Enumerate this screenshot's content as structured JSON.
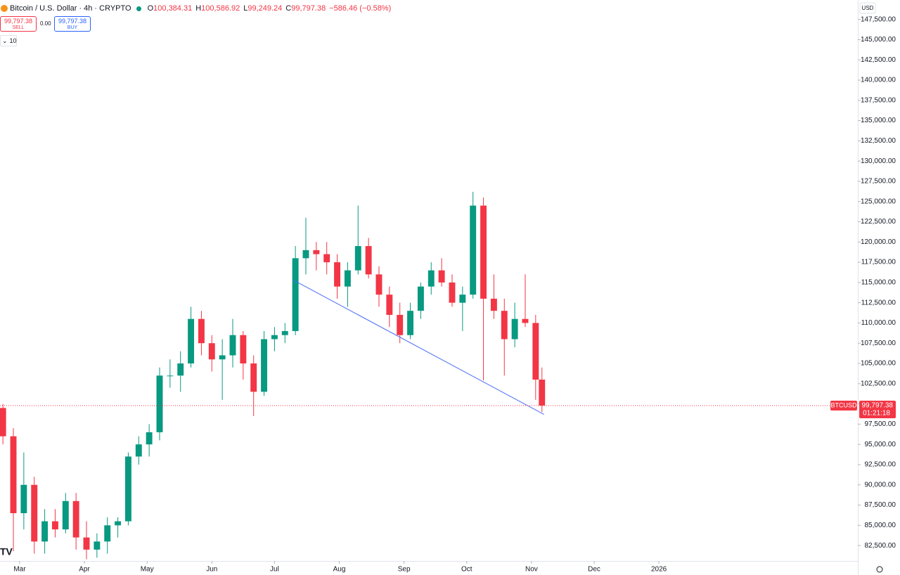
{
  "header": {
    "symbol": "Bitcoin / U.S. Dollar · 4h · CRYPTO",
    "ohlc": [
      {
        "key": "O",
        "value": "100,384.31"
      },
      {
        "key": "H",
        "value": "100,586.92"
      },
      {
        "key": "L",
        "value": "99,249.24"
      },
      {
        "key": "C",
        "value": "99,797.38"
      }
    ],
    "change": "−586.46 (−0.58%)",
    "sell": {
      "price": "99,797.38",
      "label": "SELL"
    },
    "spread": "0.00",
    "buy": {
      "price": "99,797.38",
      "label": "BUY"
    },
    "quantity": "10"
  },
  "chart_data": {
    "type": "candlestick",
    "currency": "USD",
    "symbol_tag": "BTCUSD",
    "last_price": {
      "value": 99797.38,
      "label": "99,797.38"
    },
    "countdown": "01:21:18",
    "up_color": "#089981",
    "down_color": "#f23645",
    "x": [
      -8,
      -3,
      2,
      7,
      12,
      17,
      22,
      27,
      32,
      37,
      42,
      47,
      52,
      57,
      62,
      67,
      72,
      77,
      82,
      87,
      92,
      97,
      102,
      107,
      112,
      117,
      122,
      127,
      132,
      137,
      142,
      147,
      152,
      157,
      162,
      167,
      172,
      177,
      182,
      187,
      192,
      197,
      202,
      207,
      212,
      217,
      222,
      227,
      232,
      237,
      242,
      247,
      250
    ],
    "open": [
      99500,
      96000,
      86500,
      90000,
      83000,
      85500,
      84500,
      88000,
      83500,
      82000,
      83000,
      85000,
      85500,
      93500,
      95000,
      96500,
      103500,
      103500,
      105000,
      110500,
      107500,
      105500,
      106000,
      108500,
      105000,
      101500,
      108000,
      108500,
      109000,
      118000,
      119000,
      118500,
      117500,
      114500,
      116500,
      119500,
      116000,
      113500,
      111000,
      108500,
      111500,
      114500,
      116500,
      115000,
      112500,
      113500,
      124500,
      113000,
      111500,
      108000,
      110500,
      110000,
      103000
    ],
    "high": [
      100000,
      97000,
      94000,
      91000,
      87000,
      87000,
      89000,
      89000,
      85500,
      84000,
      86000,
      86000,
      94000,
      96000,
      97500,
      104500,
      105500,
      106500,
      112000,
      111500,
      108500,
      108000,
      110500,
      109000,
      106000,
      109000,
      109500,
      110000,
      119500,
      123000,
      120000,
      120000,
      118500,
      117500,
      124500,
      120500,
      117000,
      114500,
      112500,
      112500,
      115000,
      117500,
      118000,
      116000,
      114500,
      126200,
      125500,
      116000,
      113000,
      112500,
      116000,
      111000,
      104500
    ],
    "low": [
      95000,
      81800,
      84500,
      81500,
      81500,
      83500,
      84000,
      82000,
      80800,
      81000,
      81500,
      83500,
      85000,
      92500,
      93500,
      95500,
      102000,
      101500,
      104500,
      106000,
      104000,
      100500,
      104500,
      103000,
      98500,
      101000,
      106500,
      107500,
      108500,
      116000,
      116500,
      116000,
      113000,
      112000,
      116000,
      115500,
      112000,
      109500,
      107500,
      108000,
      110500,
      113500,
      114500,
      112000,
      109000,
      113000,
      102900,
      110500,
      103500,
      107000,
      109500,
      100500,
      99000
    ],
    "close": [
      96000,
      86500,
      90000,
      83000,
      85500,
      84500,
      88000,
      83500,
      82000,
      83000,
      85000,
      85500,
      93500,
      95000,
      96500,
      103500,
      103500,
      105000,
      110500,
      107500,
      105500,
      106000,
      108500,
      105000,
      101500,
      108000,
      108500,
      109000,
      118000,
      119000,
      118500,
      117500,
      114500,
      116500,
      119500,
      116000,
      113500,
      111000,
      108500,
      111500,
      114500,
      116500,
      115000,
      112500,
      113500,
      124500,
      113000,
      111500,
      108000,
      110500,
      110000,
      103000,
      99797.38
    ],
    "trendline": {
      "x": [
        131,
        251
      ],
      "y": [
        115300,
        98700
      ],
      "color": "#4a6cf7"
    },
    "xlim": [
      -9.4,
      401.2
    ],
    "xticks": [
      {
        "value": 0,
        "label": "Mar"
      },
      {
        "value": 31,
        "label": "Apr"
      },
      {
        "value": 61,
        "label": "May"
      },
      {
        "value": 92,
        "label": "Jun"
      },
      {
        "value": 122,
        "label": "Jul"
      },
      {
        "value": 153,
        "label": "Aug"
      },
      {
        "value": 184,
        "label": "Sep"
      },
      {
        "value": 214,
        "label": "Oct"
      },
      {
        "value": 245,
        "label": "Nov"
      },
      {
        "value": 275,
        "label": "Dec"
      },
      {
        "value": 306,
        "label": "2026"
      }
    ],
    "ylim": [
      80600,
      149900
    ],
    "yticks": [
      {
        "value": 82500,
        "label": "82,500.00"
      },
      {
        "value": 85000,
        "label": "85,000.00"
      },
      {
        "value": 87500,
        "label": "87,500.00"
      },
      {
        "value": 90000,
        "label": "90,000.00"
      },
      {
        "value": 92500,
        "label": "92,500.00"
      },
      {
        "value": 95000,
        "label": "95,000.00"
      },
      {
        "value": 97500,
        "label": "97,500.00"
      },
      {
        "value": 100000,
        "label": "100,000.00"
      },
      {
        "value": 102500,
        "label": "102,500.00"
      },
      {
        "value": 105000,
        "label": "105,000.00"
      },
      {
        "value": 107500,
        "label": "107,500.00"
      },
      {
        "value": 110000,
        "label": "110,000.00"
      },
      {
        "value": 112500,
        "label": "112,500.00"
      },
      {
        "value": 115000,
        "label": "115,000.00"
      },
      {
        "value": 117500,
        "label": "117,500.00"
      },
      {
        "value": 120000,
        "label": "120,000.00"
      },
      {
        "value": 122500,
        "label": "122,500.00"
      },
      {
        "value": 125000,
        "label": "125,000.00"
      },
      {
        "value": 127500,
        "label": "127,500.00"
      },
      {
        "value": 130000,
        "label": "130,000.00"
      },
      {
        "value": 132500,
        "label": "132,500.00"
      },
      {
        "value": 135000,
        "label": "135,000.00"
      },
      {
        "value": 137500,
        "label": "137,500.00"
      },
      {
        "value": 140000,
        "label": "140,000.00"
      },
      {
        "value": 142500,
        "label": "142,500.00"
      },
      {
        "value": 145000,
        "label": "145,000.00"
      },
      {
        "value": 147500,
        "label": "147,500.00"
      }
    ]
  }
}
